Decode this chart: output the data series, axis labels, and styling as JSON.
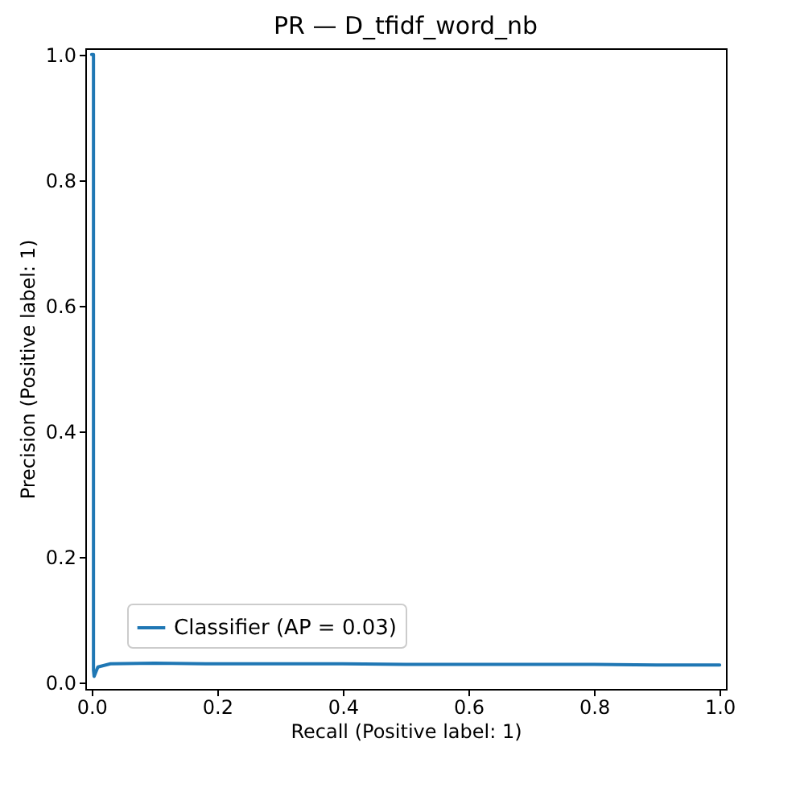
{
  "chart_data": {
    "type": "line",
    "title": "PR — D_tfidf_word_nb",
    "xlabel": "Recall (Positive label: 1)",
    "ylabel": "Precision (Positive label: 1)",
    "xlim": [
      -0.01,
      1.01
    ],
    "ylim": [
      -0.01,
      1.01
    ],
    "xticks": [
      {
        "value": 0,
        "label": "0.0"
      },
      0.2,
      0.4,
      0.6,
      0.8,
      {
        "value": 1,
        "label": "1.0"
      }
    ],
    "yticks": [
      {
        "value": 0,
        "label": "0.0"
      },
      0.2,
      0.4,
      0.6,
      0.8,
      {
        "value": 1,
        "label": "1.0"
      }
    ],
    "grid": false,
    "legend": "bottom left",
    "series": [
      {
        "name": "Classifier (AP = 0.03)",
        "color": "#1f77b4",
        "x": [
          0,
          0.003,
          0.003,
          0.004,
          0.01,
          0.03,
          0.1,
          0.2,
          0.3,
          0.4,
          0.5,
          0.6,
          0.7,
          0.8,
          0.9,
          1.0
        ],
        "values": [
          1,
          1,
          0.02,
          0.01,
          0.025,
          0.03,
          0.031,
          0.03,
          0.03,
          0.03,
          0.029,
          0.029,
          0.029,
          0.029,
          0.028,
          0.028
        ]
      }
    ]
  }
}
